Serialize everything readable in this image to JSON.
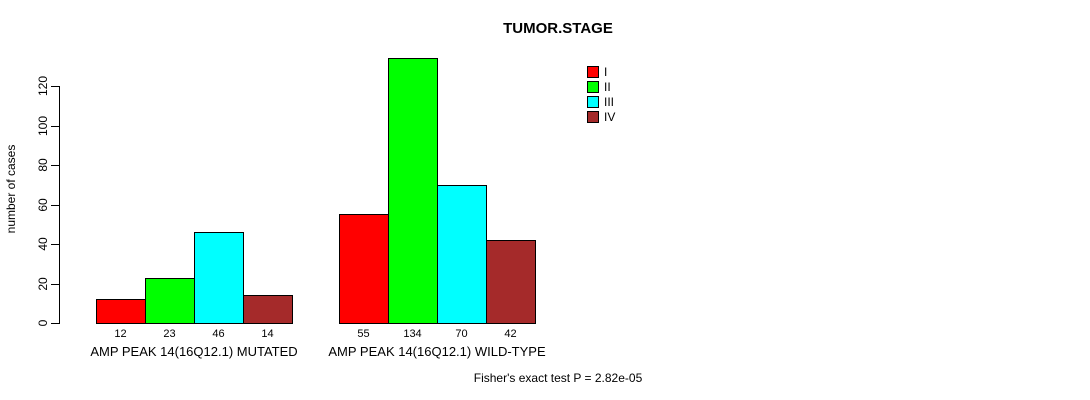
{
  "title": "TUMOR.STAGE",
  "ylabel": "number of cases",
  "footer": "Fisher's exact test P = 2.82e-05",
  "chart_data": {
    "type": "bar",
    "title": "TUMOR.STAGE",
    "xlabel": "",
    "ylabel": "number of cases",
    "ylim": [
      0,
      140
    ],
    "yticks": [
      0,
      20,
      40,
      60,
      80,
      100,
      120
    ],
    "grid": false,
    "legend_position": "top-right",
    "series_labels": [
      "I",
      "II",
      "III",
      "IV"
    ],
    "colors": [
      "#FF0000",
      "#00FF00",
      "#00FFFF",
      "#A52A2A"
    ],
    "groups": [
      {
        "label": "AMP PEAK 14(16Q12.1) MUTATED",
        "values": [
          12,
          23,
          46,
          14
        ]
      },
      {
        "label": "AMP PEAK 14(16Q12.1) WILD-TYPE",
        "values": [
          55,
          134,
          70,
          42
        ]
      }
    ],
    "annotation": "Fisher's exact test P = 2.82e-05"
  }
}
